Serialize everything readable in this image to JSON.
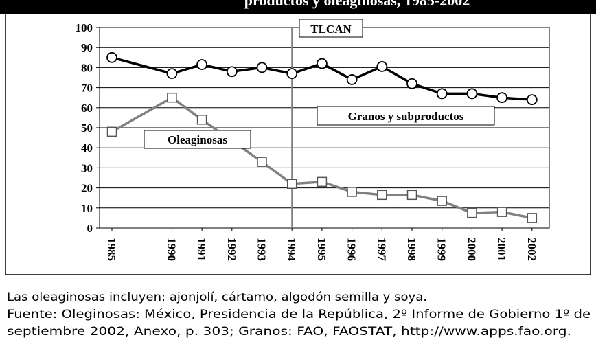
{
  "chart_data": {
    "type": "line",
    "title": "productos y oleaginosas, 1985-2002",
    "categories": [
      "1985",
      "1990",
      "1991",
      "1992",
      "1993",
      "1994",
      "1995",
      "1996",
      "1997",
      "1998",
      "1999",
      "2000",
      "2001",
      "2002"
    ],
    "series": [
      {
        "name": "Granos y subproductos",
        "color": "#000000",
        "marker": "circle",
        "values": [
          85,
          77,
          81.5,
          78,
          80,
          77,
          82,
          74,
          80.5,
          72,
          67,
          67,
          65,
          64
        ]
      },
      {
        "name": "Oleaginosas",
        "color": "#808080",
        "marker": "square",
        "values": [
          48,
          65,
          54,
          43.5,
          33,
          22,
          23,
          18,
          16.5,
          16.5,
          13.5,
          7.5,
          8,
          5
        ]
      }
    ],
    "annotation": "TLCAN",
    "ylim": [
      0,
      100
    ],
    "yticks": [
      0,
      10,
      20,
      30,
      40,
      50,
      60,
      70,
      80,
      90,
      100
    ],
    "grid": true,
    "notes": [
      "Las oleaginosas incluyen: ajonjolí, cártamo, algodón semilla y soya.",
      "Fuente: Oleginosas: México, Presidencia de la República, 2º Informe de Gobierno 1º de",
      "septiembre 2002, Anexo, p. 303; Granos: FAO, FAOSTAT, http://www.apps.fao.org."
    ]
  }
}
